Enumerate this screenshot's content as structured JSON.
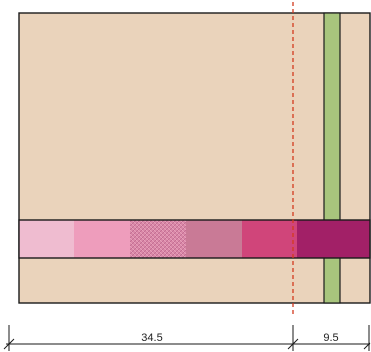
{
  "colors": {
    "background": "#ead3bb",
    "outline": "#1a1a1a",
    "vertical_strip": "#a8c57d",
    "section_line": "#d33a1e",
    "swatches": [
      "#efbcd0",
      "#ee9dbc",
      "#dc8aa9",
      "#c97a96",
      "#d0457a",
      "#a22067"
    ]
  },
  "patterns": {
    "third_swatch": "crosshatch-texture"
  },
  "dimensions": {
    "left_value": "34.5",
    "right_value": "9.5"
  }
}
